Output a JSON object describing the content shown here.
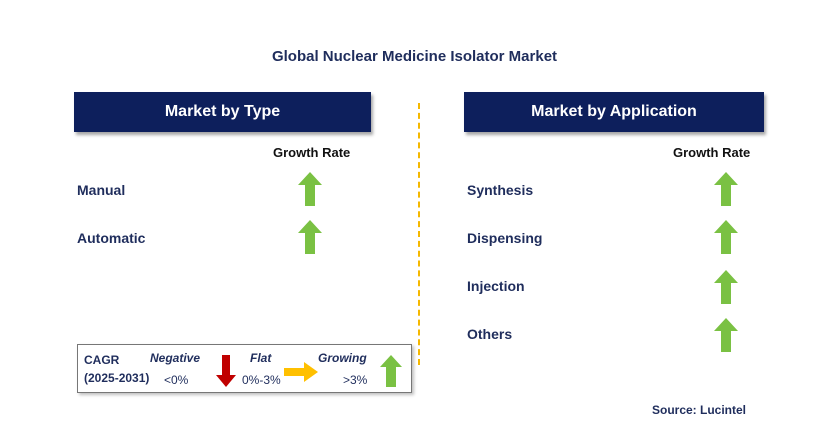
{
  "title": "Global Nuclear Medicine Isolator Market",
  "left_panel": {
    "header": "Market by Type",
    "column_label": "Growth Rate",
    "rows": [
      {
        "label": "Manual",
        "growth": "growing"
      },
      {
        "label": "Automatic",
        "growth": "growing"
      }
    ]
  },
  "right_panel": {
    "header": "Market by Application",
    "column_label": "Growth Rate",
    "rows": [
      {
        "label": "Synthesis",
        "growth": "growing"
      },
      {
        "label": "Dispensing",
        "growth": "growing"
      },
      {
        "label": "Injection",
        "growth": "growing"
      },
      {
        "label": "Others",
        "growth": "growing"
      }
    ]
  },
  "legend": {
    "cagr_label": "CAGR",
    "period": "(2025-2031)",
    "negative": {
      "label": "Negative",
      "range": "<0%",
      "icon": "down-arrow-icon",
      "color": "#c00000"
    },
    "flat": {
      "label": "Flat",
      "range": "0%-3%",
      "icon": "right-arrow-icon",
      "color": "#ffc000"
    },
    "growing": {
      "label": "Growing",
      "range": ">3%",
      "icon": "up-arrow-icon",
      "color": "#7ac143"
    }
  },
  "source": "Source: Lucintel",
  "colors": {
    "header_bg": "#0d1f5c",
    "divider": "#f5b800",
    "text_navy": "#1f2d5c",
    "up_arrow": "#7ac143"
  }
}
